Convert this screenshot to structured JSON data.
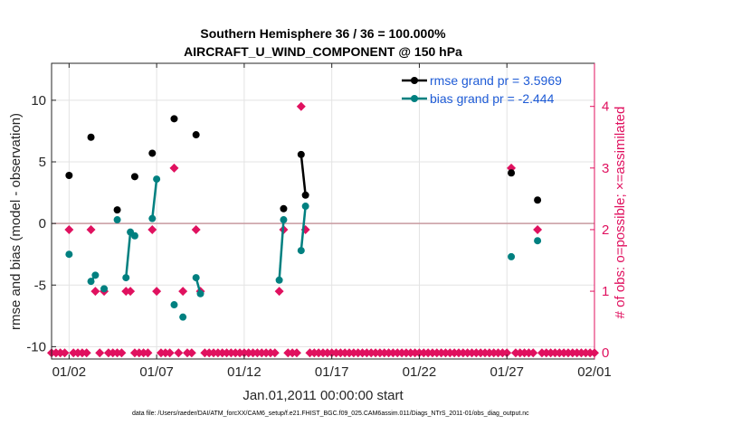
{
  "chart_data": {
    "type": "line",
    "title": "Southern Hemisphere 36 / 36 = 100.000%",
    "subtitle": "AIRCRAFT_U_WIND_COMPONENT @ 150 hPa",
    "xlabel": "Jan.01,2011 00:00:00 start",
    "ylabel": "rmse and bias (model - observation)",
    "ylabel_right": "# of obs: o=possible; ×=assimilated",
    "footnote": "data file: /Users/raeder/DAI/ATM_forcXX/CAM6_setup/f.e21.FHIST_BGC.f09_025.CAM6assim.011/Diags_NTrS_2011-01/obs_diag_output.nc",
    "x_ticks": [
      {
        "value": 2,
        "label": "01/02"
      },
      {
        "value": 7,
        "label": "01/07"
      },
      {
        "value": 12,
        "label": "01/12"
      },
      {
        "value": 17,
        "label": "01/17"
      },
      {
        "value": 22,
        "label": "01/22"
      },
      {
        "value": 27,
        "label": "01/27"
      },
      {
        "value": 32,
        "label": "02/01"
      }
    ],
    "y_ticks": [
      {
        "value": -10,
        "label": "-10"
      },
      {
        "value": -5,
        "label": "-5"
      },
      {
        "value": 0,
        "label": "0"
      },
      {
        "value": 5,
        "label": "5"
      },
      {
        "value": 10,
        "label": "10"
      }
    ],
    "y2_ticks": [
      {
        "value": 0,
        "label": "0"
      },
      {
        "value": 1,
        "label": "1"
      },
      {
        "value": 2,
        "label": "2"
      },
      {
        "value": 3,
        "label": "3"
      },
      {
        "value": 4,
        "label": "4"
      }
    ],
    "xlim": [
      1.0,
      32.0
    ],
    "ylim": [
      -11,
      13
    ],
    "y2lim": [
      -0.1,
      4.7
    ],
    "grid": true,
    "legend_position": "top-right",
    "colors": {
      "rmse": "#000000",
      "bias": "#008080",
      "obs": "#e0115f",
      "zero_line": "#c89aa0",
      "legend_text": "#1e5bd6"
    },
    "series": [
      {
        "name": "rmse grand pr = 3.5969",
        "key": "rmse",
        "points": [
          [
            2.0,
            3.9
          ],
          [
            3.25,
            7.0
          ],
          [
            4.75,
            1.1
          ],
          [
            5.75,
            3.8
          ],
          [
            6.75,
            5.7
          ],
          [
            8.0,
            8.5
          ],
          [
            9.25,
            7.2
          ],
          [
            14.25,
            1.2
          ],
          [
            15.25,
            5.6
          ],
          [
            15.5,
            2.3
          ],
          [
            27.25,
            4.1
          ],
          [
            28.75,
            1.9
          ]
        ]
      },
      {
        "name": "bias grand pr = -2.444",
        "key": "bias",
        "points": [
          [
            2.0,
            -2.5
          ],
          [
            3.25,
            -4.7
          ],
          [
            3.5,
            -4.2
          ],
          [
            4.0,
            -5.3
          ],
          [
            4.75,
            0.3
          ],
          [
            5.25,
            -4.4
          ],
          [
            5.5,
            -0.7
          ],
          [
            5.75,
            -1.0
          ],
          [
            6.75,
            0.4
          ],
          [
            7.0,
            3.6
          ],
          [
            8.0,
            -6.6
          ],
          [
            8.5,
            -7.6
          ],
          [
            9.25,
            -4.4
          ],
          [
            9.5,
            -5.7
          ],
          [
            14.0,
            -4.6
          ],
          [
            14.25,
            0.3
          ],
          [
            15.25,
            -2.2
          ],
          [
            15.5,
            1.4
          ],
          [
            27.25,
            -2.7
          ],
          [
            28.75,
            -1.4
          ]
        ]
      },
      {
        "name": "# of obs",
        "key": "obs",
        "x": [
          1.0,
          1.25,
          1.5,
          1.75,
          2.0,
          2.25,
          2.5,
          2.75,
          3.0,
          3.25,
          3.5,
          3.75,
          4.0,
          4.25,
          4.5,
          4.75,
          5.0,
          5.25,
          5.5,
          5.75,
          6.0,
          6.25,
          6.5,
          6.75,
          7.0,
          7.25,
          7.5,
          7.75,
          8.0,
          8.25,
          8.5,
          8.75,
          9.0,
          9.25,
          9.5,
          9.75,
          10.0,
          10.25,
          10.5,
          10.75,
          11.0,
          11.25,
          11.5,
          11.75,
          12.0,
          12.25,
          12.5,
          12.75,
          13.0,
          13.25,
          13.5,
          13.75,
          14.0,
          14.25,
          14.5,
          14.75,
          15.0,
          15.25,
          15.5,
          15.75,
          16.0,
          16.25,
          16.5,
          16.75,
          17.0,
          17.25,
          17.5,
          17.75,
          18.0,
          18.25,
          18.5,
          18.75,
          19.0,
          19.25,
          19.5,
          19.75,
          20.0,
          20.25,
          20.5,
          20.75,
          21.0,
          21.25,
          21.5,
          21.75,
          22.0,
          22.25,
          22.5,
          22.75,
          23.0,
          23.25,
          23.5,
          23.75,
          24.0,
          24.25,
          24.5,
          24.75,
          25.0,
          25.25,
          25.5,
          25.75,
          26.0,
          26.25,
          26.5,
          26.75,
          27.0,
          27.25,
          27.5,
          27.75,
          28.0,
          28.25,
          28.5,
          28.75,
          29.0,
          29.25,
          29.5,
          29.75,
          30.0,
          30.25,
          30.5,
          30.75,
          31.0,
          31.25,
          31.5,
          31.75,
          32.0
        ],
        "values": [
          0,
          0,
          0,
          0,
          2,
          0,
          0,
          0,
          0,
          2,
          1,
          0,
          1,
          0,
          0,
          0,
          0,
          1,
          1,
          0,
          0,
          0,
          0,
          2,
          1,
          0,
          0,
          0,
          3,
          0,
          1,
          0,
          0,
          2,
          1,
          0,
          0,
          0,
          0,
          0,
          0,
          0,
          0,
          0,
          0,
          0,
          0,
          0,
          0,
          0,
          0,
          0,
          1,
          2,
          0,
          0,
          0,
          4,
          2,
          0,
          0,
          0,
          0,
          0,
          0,
          0,
          0,
          0,
          0,
          0,
          0,
          0,
          0,
          0,
          0,
          0,
          0,
          0,
          0,
          0,
          0,
          0,
          0,
          0,
          0,
          0,
          0,
          0,
          0,
          0,
          0,
          0,
          0,
          0,
          0,
          0,
          0,
          0,
          0,
          0,
          0,
          0,
          0,
          0,
          0,
          3,
          0,
          0,
          0,
          0,
          0,
          2,
          0,
          0,
          0,
          0,
          0,
          0,
          0,
          0,
          0,
          0,
          0,
          0,
          0
        ]
      }
    ]
  }
}
